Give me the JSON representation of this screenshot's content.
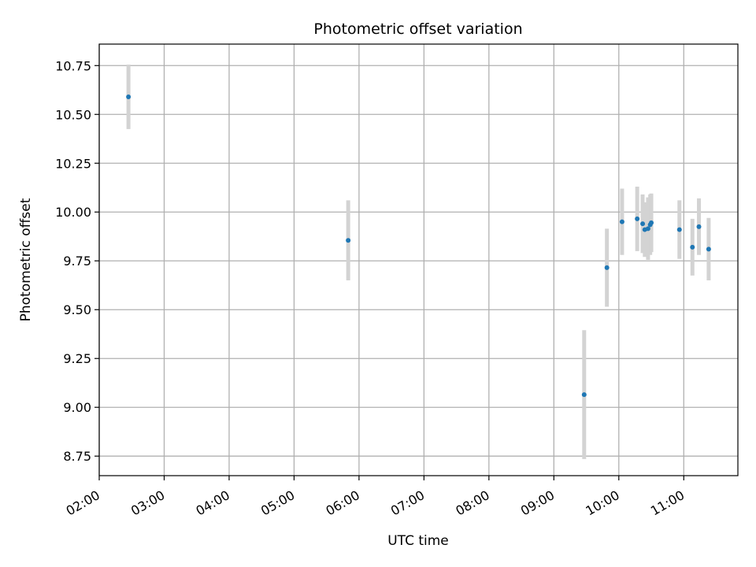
{
  "chart_data": {
    "type": "scatter",
    "title": "Photometric offset variation",
    "xlabel": "UTC time",
    "ylabel": "Photometric offset",
    "x_ticks": [
      "02:00",
      "03:00",
      "04:00",
      "05:00",
      "06:00",
      "07:00",
      "08:00",
      "09:00",
      "10:00",
      "11:00"
    ],
    "y_ticks": [
      "8.75",
      "9.00",
      "9.25",
      "9.50",
      "9.75",
      "10.00",
      "10.25",
      "10.50",
      "10.75"
    ],
    "xlim": [
      "02:00",
      "11:50"
    ],
    "ylim": [
      8.65,
      10.86
    ],
    "grid": true,
    "colors": {
      "point": "#1f77b4",
      "errorbar": "#d3d3d3",
      "grid": "#b0b0b0"
    },
    "points": [
      {
        "time": "02:27",
        "y": 10.59,
        "yerr": 0.165
      },
      {
        "time": "05:50",
        "y": 9.855,
        "yerr": 0.205
      },
      {
        "time": "09:28",
        "y": 9.065,
        "yerr": 0.33
      },
      {
        "time": "09:49",
        "y": 9.715,
        "yerr": 0.2
      },
      {
        "time": "10:03",
        "y": 9.95,
        "yerr": 0.17
      },
      {
        "time": "10:17",
        "y": 9.965,
        "yerr": 0.165
      },
      {
        "time": "10:22",
        "y": 9.94,
        "yerr": 0.15
      },
      {
        "time": "10:24",
        "y": 9.91,
        "yerr": 0.14
      },
      {
        "time": "10:27",
        "y": 9.915,
        "yerr": 0.16
      },
      {
        "time": "10:29",
        "y": 9.935,
        "yerr": 0.155
      },
      {
        "time": "10:30",
        "y": 9.945,
        "yerr": 0.15
      },
      {
        "time": "10:56",
        "y": 9.91,
        "yerr": 0.15
      },
      {
        "time": "11:08",
        "y": 9.82,
        "yerr": 0.145
      },
      {
        "time": "11:14",
        "y": 9.925,
        "yerr": 0.145
      },
      {
        "time": "11:23",
        "y": 9.81,
        "yerr": 0.16
      }
    ]
  }
}
